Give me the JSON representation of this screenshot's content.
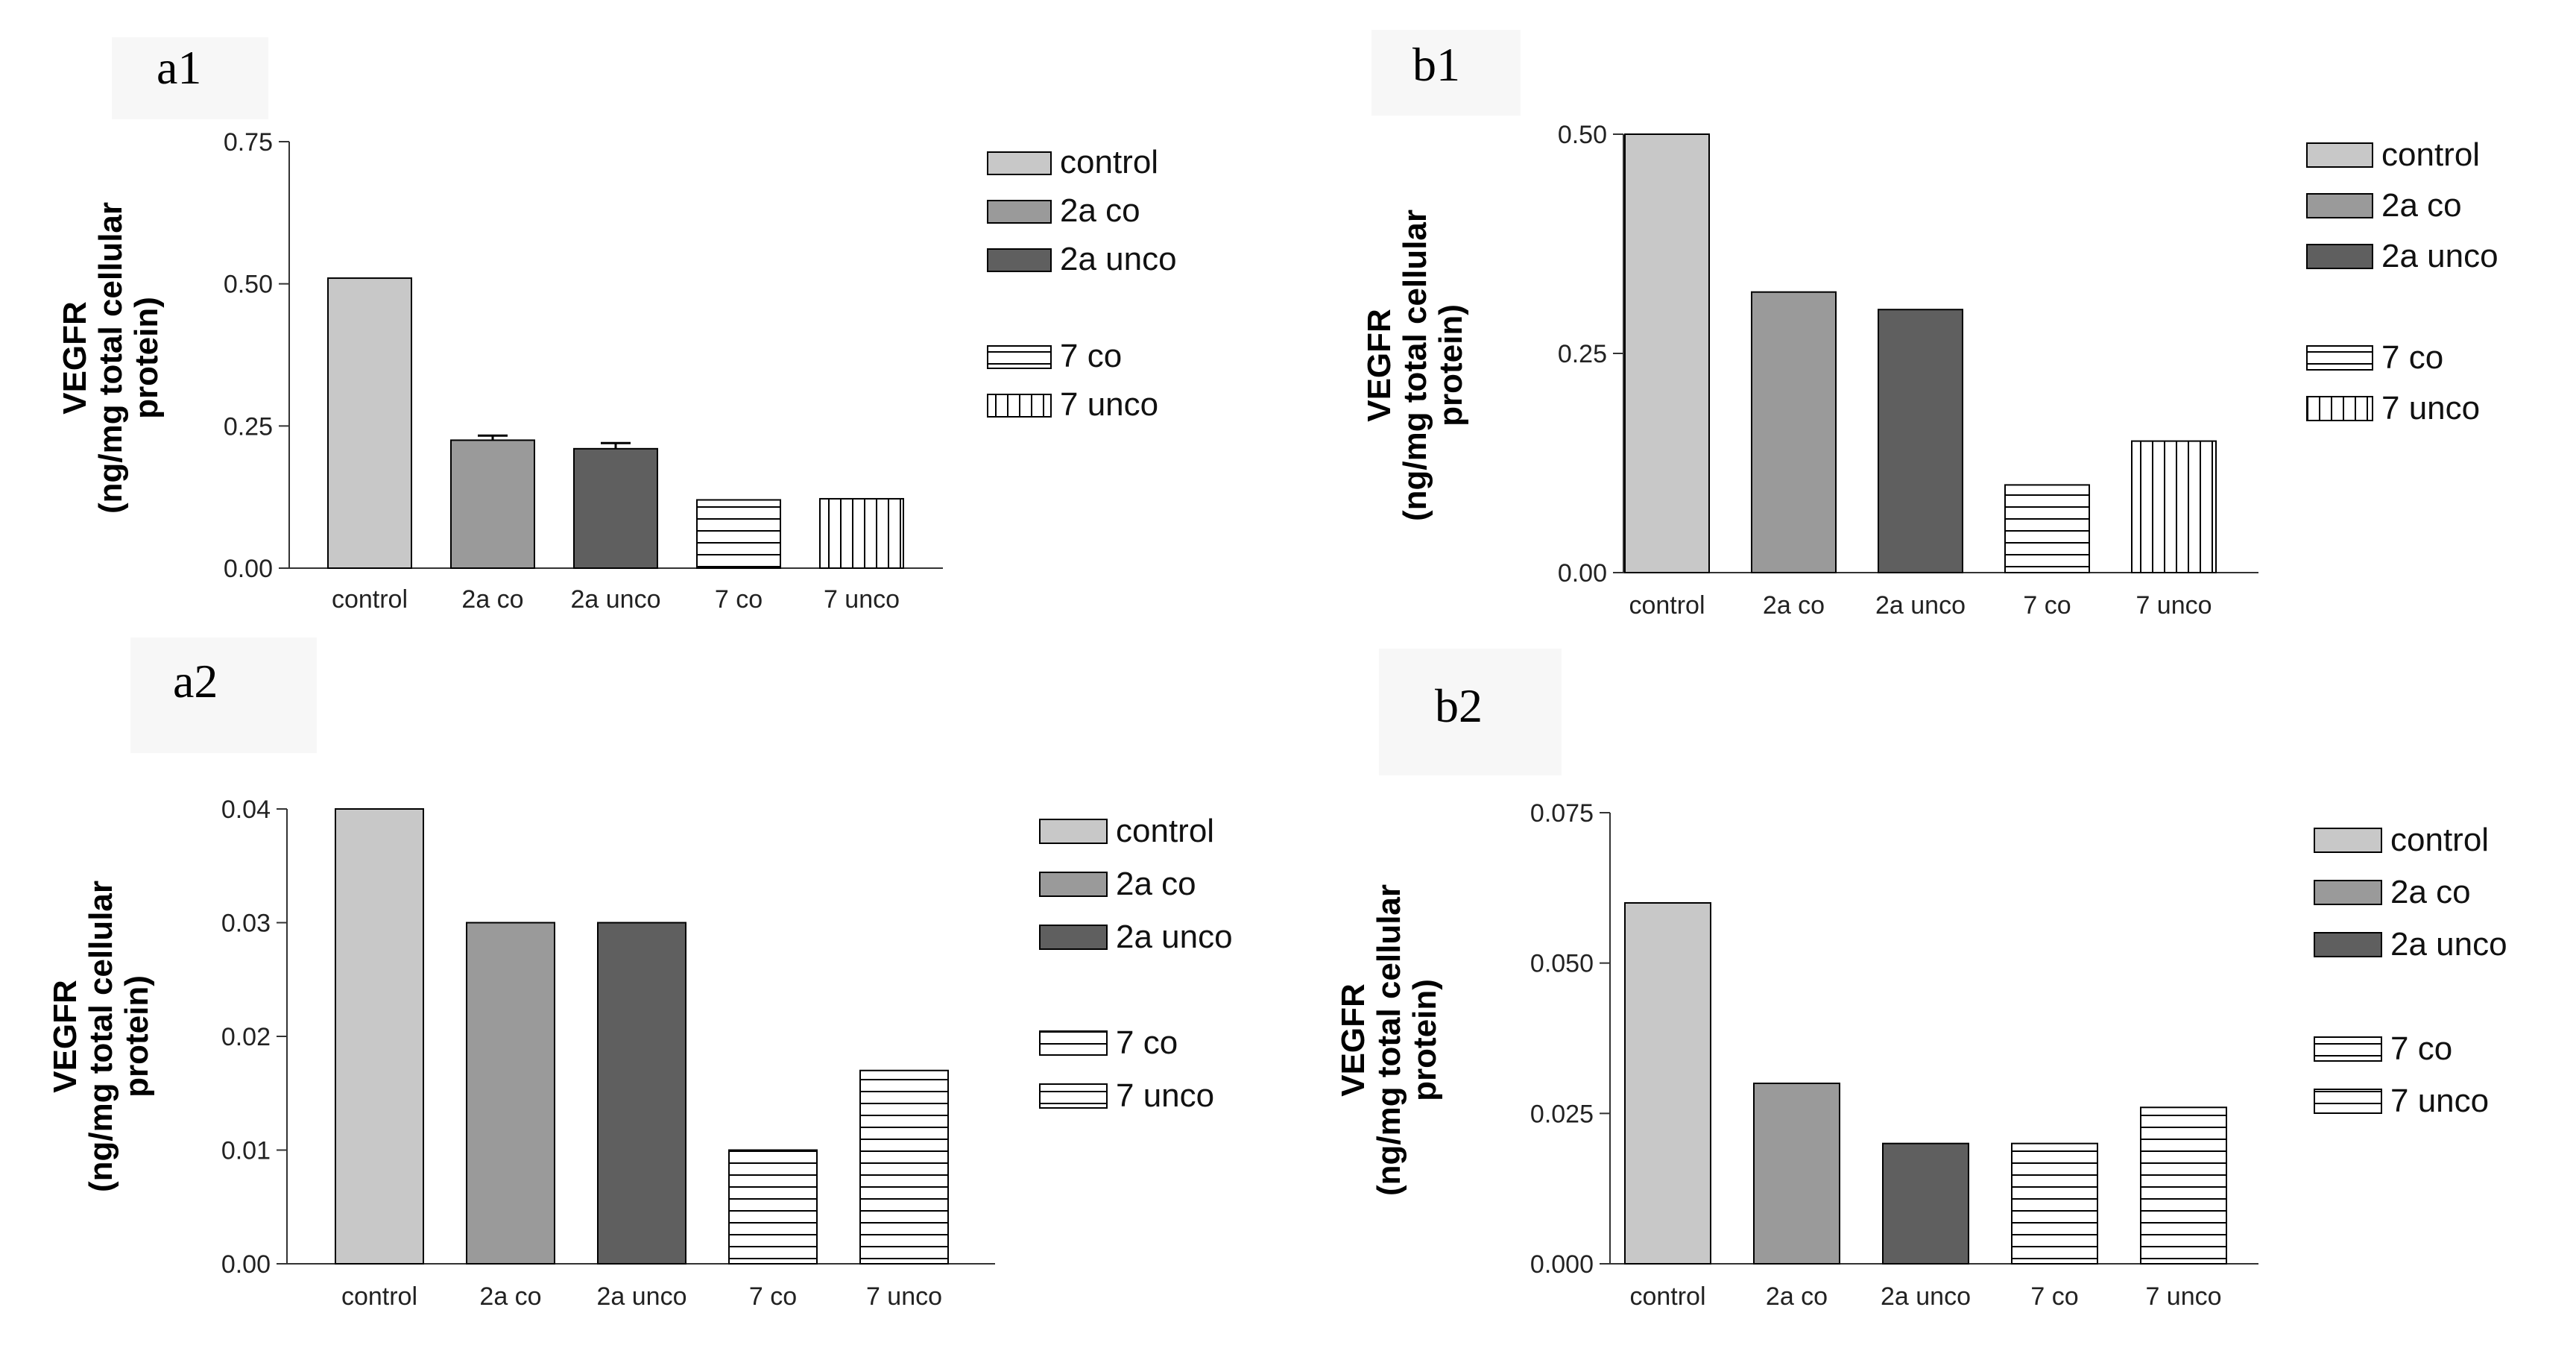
{
  "colors": {
    "control": "#c8c8c8",
    "2a_co": "#9a9a9a",
    "2a_unco": "#5f5f5f",
    "pattern_fill": "#ffffff",
    "stroke": "#000000",
    "label_bg": "#f7f7f7"
  },
  "chart_data": [
    {
      "id": "a1",
      "panel_label": "a1",
      "type": "bar",
      "categories": [
        "control",
        "2a co",
        "2a unco",
        "7 co",
        "7 unco"
      ],
      "values": [
        0.51,
        0.225,
        0.21,
        0.12,
        0.122
      ],
      "errors": [
        0,
        0.008,
        0.01,
        0,
        0
      ],
      "patterns": [
        "solid-light",
        "solid-mid",
        "solid-dark",
        "horizontal",
        "vertical"
      ],
      "ylabel_line1": "VEGFR",
      "ylabel_line2": "(ng/mg total cellular",
      "ylabel_line3": "protein)",
      "ylim": [
        0,
        0.75
      ],
      "yticks": [
        "0.00",
        "0.25",
        "0.50",
        "0.75"
      ],
      "ytick_values": [
        0,
        0.25,
        0.5,
        0.75
      ],
      "legend": [
        "control",
        "2a co",
        "2a unco",
        "7 co",
        "7 unco"
      ]
    },
    {
      "id": "b1",
      "panel_label": "b1",
      "type": "bar",
      "categories": [
        "control",
        "2a co",
        "2a unco",
        "7 co",
        "7 unco"
      ],
      "values": [
        0.5,
        0.32,
        0.3,
        0.1,
        0.15
      ],
      "errors": [
        0,
        0,
        0,
        0,
        0
      ],
      "patterns": [
        "solid-light",
        "solid-mid",
        "solid-dark",
        "horizontal",
        "vertical"
      ],
      "ylabel_line1": "VEGFR",
      "ylabel_line2": "(ng/mg total cellular",
      "ylabel_line3": "protein)",
      "ylim": [
        0,
        0.5
      ],
      "yticks": [
        "0.00",
        "0.25",
        "0.50"
      ],
      "ytick_values": [
        0,
        0.25,
        0.5
      ],
      "legend": [
        "control",
        "2a co",
        "2a unco",
        "7 co",
        "7 unco"
      ]
    },
    {
      "id": "a2",
      "panel_label": "a2",
      "type": "bar",
      "categories": [
        "control",
        "2a co",
        "2a unco",
        "7 co",
        "7 unco"
      ],
      "values": [
        0.04,
        0.03,
        0.03,
        0.01,
        0.017
      ],
      "errors": [
        0,
        0,
        0,
        0,
        0
      ],
      "patterns": [
        "solid-light",
        "solid-mid",
        "solid-dark",
        "horizontal",
        "horizontal"
      ],
      "ylabel_line1": "VEGFR",
      "ylabel_line2": "(ng/mg total cellular",
      "ylabel_line3": "protein)",
      "ylim": [
        0,
        0.04
      ],
      "yticks": [
        "0.00",
        "0.01",
        "0.02",
        "0.03",
        "0.04"
      ],
      "ytick_values": [
        0,
        0.01,
        0.02,
        0.03,
        0.04
      ],
      "legend": [
        "control",
        "2a co",
        "2a unco",
        "7 co",
        "7 unco"
      ]
    },
    {
      "id": "b2",
      "panel_label": "b2",
      "type": "bar",
      "categories": [
        "control",
        "2a co",
        "2a unco",
        "7 co",
        "7 unco"
      ],
      "values": [
        0.06,
        0.03,
        0.02,
        0.02,
        0.026
      ],
      "errors": [
        0,
        0,
        0,
        0,
        0
      ],
      "patterns": [
        "solid-light",
        "solid-mid",
        "solid-dark",
        "horizontal",
        "horizontal"
      ],
      "ylabel_line1": "VEGFR",
      "ylabel_line2": "(ng/mg total cellular",
      "ylabel_line3": "protein)",
      "ylim": [
        0,
        0.075
      ],
      "yticks": [
        "0.000",
        "0.025",
        "0.050",
        "0.075"
      ],
      "ytick_values": [
        0,
        0.025,
        0.05,
        0.075
      ],
      "legend": [
        "control",
        "2a co",
        "2a unco",
        "7 co",
        "7 unco"
      ]
    }
  ]
}
